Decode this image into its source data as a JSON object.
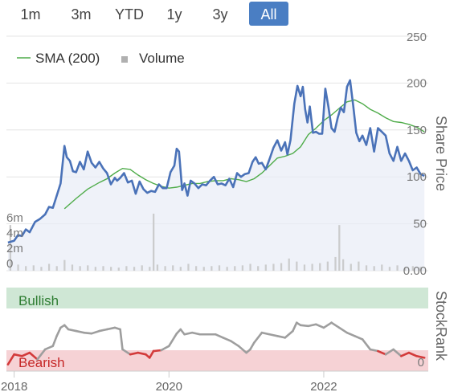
{
  "range_selector": {
    "buttons": [
      "1m",
      "3m",
      "YTD",
      "1y",
      "3y",
      "All"
    ],
    "active": "All",
    "active_color": "#4a7ec3"
  },
  "colors": {
    "price": "#4a72b8",
    "sma": "#4fac4a",
    "volume": "#c8c8c8",
    "bullish_band": "#cfe7d5",
    "bearish_band": "#f6d2d5",
    "bullish_text": "#2e7d32",
    "bearish_text": "#c62828",
    "rank_neutral": "#9e9e9e",
    "rank_bearish": "#d33a3a"
  },
  "chart_data": [
    {
      "type": "line",
      "legend": {
        "placement": "top-left",
        "entries": [
          {
            "label": "SMA (200)",
            "symbol": "line"
          },
          {
            "label": "Volume",
            "symbol": "square"
          }
        ]
      },
      "right_axis": {
        "label": "Share Price",
        "ticks": [
          "250",
          "200",
          "150",
          "100",
          "50",
          "0.00"
        ],
        "range": [
          0,
          250
        ]
      },
      "left_axis": {
        "label": "",
        "ticks": [
          "6m",
          "4m",
          "2m",
          "0"
        ],
        "range": [
          0,
          15
        ]
      },
      "x_axis": {
        "ticks": [
          "2018",
          "2020",
          "2022"
        ],
        "range": [
          2017.9,
          2023.35
        ]
      },
      "grid": "horizontal",
      "series": [
        {
          "name": "Share price",
          "x": [
            2017.92,
            2018.0,
            2018.05,
            2018.1,
            2018.15,
            2018.2,
            2018.27,
            2018.33,
            2018.4,
            2018.45,
            2018.5,
            2018.55,
            2018.6,
            2018.65,
            2018.68,
            2018.72,
            2018.76,
            2018.8,
            2018.85,
            2018.9,
            2018.95,
            2019.0,
            2019.05,
            2019.1,
            2019.15,
            2019.2,
            2019.25,
            2019.3,
            2019.33,
            2019.37,
            2019.42,
            2019.47,
            2019.52,
            2019.57,
            2019.62,
            2019.67,
            2019.72,
            2019.77,
            2019.82,
            2019.87,
            2019.92,
            2019.97,
            2020.02,
            2020.07,
            2020.1,
            2020.13,
            2020.17,
            2020.2,
            2020.24,
            2020.28,
            2020.33,
            2020.38,
            2020.43,
            2020.48,
            2020.53,
            2020.58,
            2020.63,
            2020.68,
            2020.73,
            2020.78,
            2020.83,
            2020.88,
            2020.93,
            2020.98,
            2021.03,
            2021.08,
            2021.12,
            2021.16,
            2021.2,
            2021.25,
            2021.3,
            2021.35,
            2021.4,
            2021.45,
            2021.5,
            2021.53,
            2021.57,
            2021.62,
            2021.66,
            2021.7,
            2021.73,
            2021.76,
            2021.79,
            2021.82,
            2021.86,
            2021.9,
            2021.94,
            2021.98,
            2022.02,
            2022.06,
            2022.1,
            2022.14,
            2022.18,
            2022.22,
            2022.26,
            2022.3,
            2022.34,
            2022.38,
            2022.42,
            2022.46,
            2022.5,
            2022.55,
            2022.6,
            2022.65,
            2022.7,
            2022.75,
            2022.8,
            2022.85,
            2022.9,
            2022.95,
            2023.0,
            2023.05,
            2023.1,
            2023.15,
            2023.2,
            2023.25,
            2023.3
          ],
          "values": [
            30,
            32,
            38,
            37,
            44,
            41,
            52,
            55,
            60,
            68,
            67,
            80,
            93,
            133,
            121,
            117,
            106,
            105,
            116,
            108,
            127,
            115,
            110,
            116,
            109,
            104,
            92,
            99,
            96,
            99,
            104,
            94,
            96,
            82,
            95,
            87,
            83,
            85,
            84,
            92,
            88,
            88,
            105,
            112,
            130,
            127,
            86,
            93,
            80,
            96,
            93,
            88,
            92,
            91,
            96,
            100,
            92,
            93,
            91,
            98,
            89,
            104,
            100,
            103,
            104,
            116,
            121,
            114,
            115,
            108,
            119,
            131,
            139,
            128,
            137,
            124,
            139,
            178,
            197,
            186,
            196,
            172,
            158,
            175,
            147,
            148,
            146,
            146,
            194,
            175,
            152,
            148,
            163,
            174,
            169,
            196,
            203,
            176,
            147,
            138,
            144,
            134,
            152,
            127,
            152,
            148,
            144,
            125,
            117,
            132,
            117,
            125,
            117,
            107,
            110,
            103,
            101
          ]
        },
        {
          "name": "SMA (200)",
          "x": [
            2018.65,
            2018.8,
            2018.95,
            2019.1,
            2019.2,
            2019.3,
            2019.4,
            2019.5,
            2019.6,
            2019.7,
            2019.8,
            2019.9,
            2020.0,
            2020.1,
            2020.2,
            2020.3,
            2020.4,
            2020.5,
            2020.6,
            2020.7,
            2020.8,
            2020.9,
            2021.0,
            2021.1,
            2021.2,
            2021.3,
            2021.4,
            2021.5,
            2021.6,
            2021.7,
            2021.8,
            2021.9,
            2022.0,
            2022.1,
            2022.2,
            2022.3,
            2022.4,
            2022.5,
            2022.6,
            2022.7,
            2022.8,
            2022.9,
            2023.0,
            2023.1,
            2023.2,
            2023.3
          ],
          "values": [
            66,
            77,
            87,
            94,
            98,
            104,
            109,
            108,
            102,
            97,
            93,
            90,
            88,
            89,
            91,
            93,
            93,
            95,
            96,
            96,
            98,
            97,
            95,
            98,
            104,
            112,
            120,
            122,
            125,
            132,
            145,
            152,
            160,
            166,
            173,
            180,
            182,
            178,
            172,
            168,
            163,
            159,
            158,
            156,
            153,
            148
          ]
        },
        {
          "name": "Volume",
          "type": "bar",
          "x": [
            2017.95,
            2018.05,
            2018.15,
            2018.25,
            2018.35,
            2018.45,
            2018.55,
            2018.65,
            2018.75,
            2018.85,
            2018.95,
            2019.05,
            2019.15,
            2019.25,
            2019.35,
            2019.45,
            2019.55,
            2019.65,
            2019.75,
            2019.8,
            2019.85,
            2019.95,
            2020.05,
            2020.15,
            2020.25,
            2020.35,
            2020.45,
            2020.55,
            2020.65,
            2020.75,
            2020.85,
            2020.95,
            2021.05,
            2021.15,
            2021.25,
            2021.35,
            2021.45,
            2021.55,
            2021.65,
            2021.75,
            2021.85,
            2021.95,
            2022.05,
            2022.15,
            2022.2,
            2022.25,
            2022.35,
            2022.45,
            2022.55,
            2022.65,
            2022.75,
            2022.85,
            2022.95,
            2023.05,
            2023.15,
            2023.25
          ],
          "values": [
            6,
            0.8,
            0.6,
            0.7,
            0.5,
            0.9,
            0.6,
            1.4,
            0.8,
            0.6,
            0.7,
            0.5,
            0.6,
            0.5,
            0.4,
            0.6,
            0.5,
            0.7,
            0.5,
            7.5,
            0.8,
            0.6,
            0.7,
            0.5,
            0.9,
            0.6,
            0.5,
            0.6,
            0.7,
            0.5,
            0.6,
            0.7,
            0.9,
            0.6,
            0.8,
            0.9,
            1.0,
            1.6,
            1.2,
            0.8,
            0.9,
            1.0,
            1.2,
            1.8,
            6.0,
            1.5,
            0.9,
            1.2,
            0.7,
            0.6,
            0.8,
            0.5,
            0.7,
            0.4,
            0.6,
            0.5
          ]
        }
      ]
    },
    {
      "type": "line",
      "right_axis": {
        "label": "StockRank",
        "ticks": [
          "0"
        ],
        "range": [
          0,
          100
        ]
      },
      "x_axis": {
        "ticks": [
          "2018",
          "2020",
          "2022"
        ],
        "range": [
          2017.9,
          2023.35
        ]
      },
      "bands": [
        {
          "label": "Bullish",
          "from": 75,
          "to": 100
        },
        {
          "label": "Bearish",
          "from": 0,
          "to": 25
        }
      ],
      "series": [
        {
          "name": "StockRank",
          "x": [
            2017.92,
            2018.0,
            2018.1,
            2018.2,
            2018.3,
            2018.4,
            2018.5,
            2018.55,
            2018.6,
            2018.65,
            2018.7,
            2018.8,
            2018.9,
            2019.0,
            2019.1,
            2019.2,
            2019.3,
            2019.37,
            2019.4,
            2019.5,
            2019.6,
            2019.7,
            2019.75,
            2019.8,
            2019.9,
            2020.0,
            2020.1,
            2020.15,
            2020.2,
            2020.3,
            2020.4,
            2020.5,
            2020.6,
            2020.7,
            2020.8,
            2020.9,
            2021.0,
            2021.05,
            2021.1,
            2021.2,
            2021.3,
            2021.4,
            2021.5,
            2021.6,
            2021.65,
            2021.7,
            2021.8,
            2021.9,
            2022.0,
            2022.1,
            2022.2,
            2022.3,
            2022.4,
            2022.5,
            2022.6,
            2022.7,
            2022.8,
            2022.9,
            2023.0,
            2023.1,
            2023.2,
            2023.3
          ],
          "values": [
            8,
            20,
            18,
            22,
            14,
            26,
            30,
            42,
            52,
            55,
            50,
            48,
            46,
            45,
            48,
            50,
            52,
            50,
            26,
            20,
            22,
            20,
            16,
            24,
            25,
            30,
            45,
            50,
            44,
            46,
            44,
            44,
            44,
            40,
            36,
            30,
            22,
            26,
            34,
            46,
            44,
            42,
            40,
            48,
            58,
            55,
            54,
            56,
            52,
            58,
            52,
            46,
            42,
            38,
            26,
            24,
            20,
            26,
            18,
            22,
            18,
            16
          ],
          "bearish_threshold": 25
        }
      ]
    }
  ]
}
